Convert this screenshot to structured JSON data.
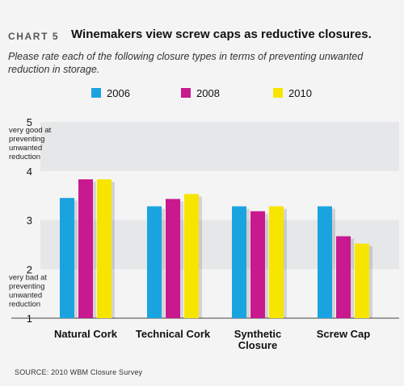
{
  "header": {
    "kicker": "CHART 5",
    "title": "Winemakers view screw caps as reductive closures.",
    "subtitle": "Please rate each of the following closure types in terms of preventing unwanted reduction in storage."
  },
  "source": "SOURCE: 2010 WBM Closure Survey",
  "chart_data": {
    "type": "bar",
    "title": "Winemakers view screw caps as reductive closures.",
    "categories": [
      "Natural Cork",
      "Technical Cork",
      "Synthetic Closure",
      "Screw Cap"
    ],
    "series": [
      {
        "name": "2006",
        "color": "#1aa4df",
        "values": [
          3.45,
          3.28,
          3.28,
          3.28
        ]
      },
      {
        "name": "2008",
        "color": "#c8198e",
        "values": [
          3.83,
          3.43,
          3.18,
          2.67
        ]
      },
      {
        "name": "2010",
        "color": "#f7e500",
        "values": [
          3.83,
          3.53,
          3.28,
          2.52
        ]
      }
    ],
    "ylim": [
      1,
      5
    ],
    "yticks": [
      1,
      2,
      3,
      4,
      5
    ],
    "ytick_annotations": [
      {
        "value": 5,
        "text": "very good at preventing unwanted reduction"
      },
      {
        "value": 2,
        "text": "very bad at preventing unwanted reduction"
      }
    ],
    "legend": "top",
    "grid": "alternating bands"
  }
}
